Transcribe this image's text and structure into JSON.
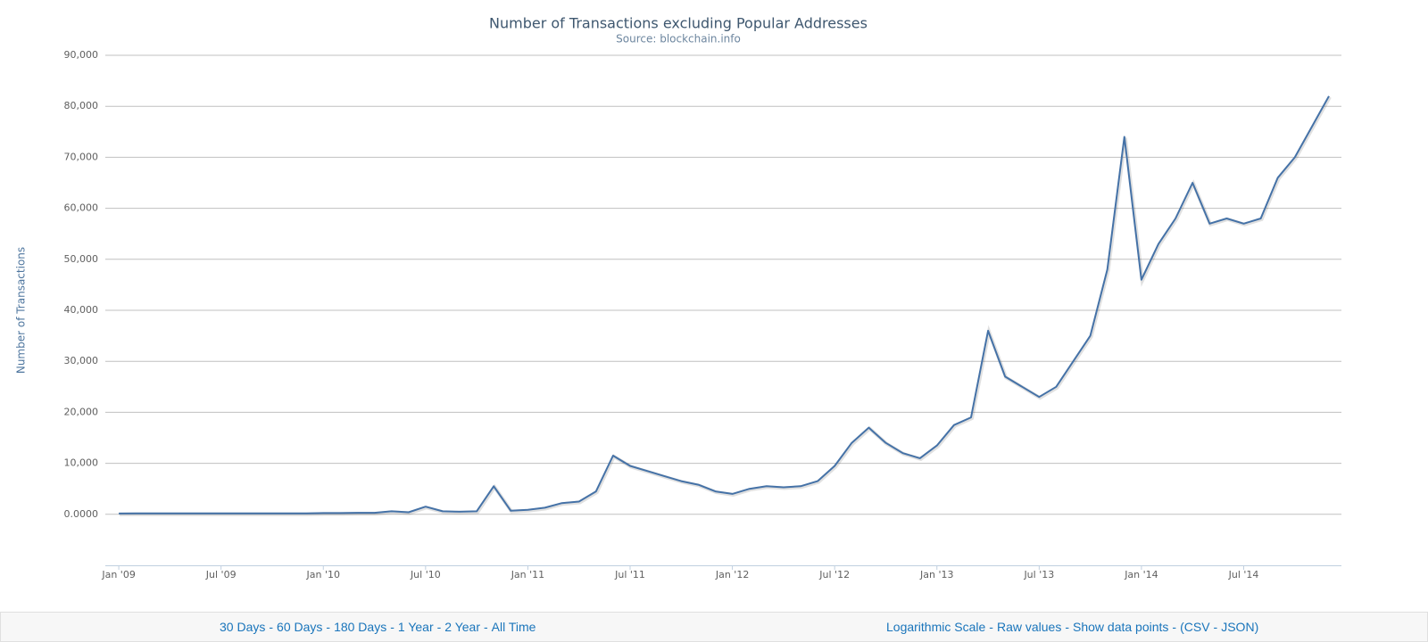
{
  "chart_data": {
    "type": "line",
    "title": "Number of Transactions excluding Popular Addresses",
    "subtitle": "Source: blockchain.info",
    "y_label": "Number of Transactions",
    "x": [
      "2009-01",
      "2009-02",
      "2009-03",
      "2009-04",
      "2009-05",
      "2009-06",
      "2009-07",
      "2009-08",
      "2009-09",
      "2009-10",
      "2009-11",
      "2009-12",
      "2010-01",
      "2010-02",
      "2010-03",
      "2010-04",
      "2010-05",
      "2010-06",
      "2010-07",
      "2010-08",
      "2010-09",
      "2010-10",
      "2010-11",
      "2010-12",
      "2011-01",
      "2011-02",
      "2011-03",
      "2011-04",
      "2011-05",
      "2011-06",
      "2011-07",
      "2011-08",
      "2011-09",
      "2011-10",
      "2011-11",
      "2011-12",
      "2012-01",
      "2012-02",
      "2012-03",
      "2012-04",
      "2012-05",
      "2012-06",
      "2012-07",
      "2012-08",
      "2012-09",
      "2012-10",
      "2012-11",
      "2012-12",
      "2013-01",
      "2013-02",
      "2013-03",
      "2013-04",
      "2013-05",
      "2013-06",
      "2013-07",
      "2013-08",
      "2013-09",
      "2013-10",
      "2013-11",
      "2013-12",
      "2014-01",
      "2014-02",
      "2014-03",
      "2014-04",
      "2014-05",
      "2014-06",
      "2014-07",
      "2014-08",
      "2014-09",
      "2014-10",
      "2014-11",
      "2014-12"
    ],
    "series": [
      {
        "name": "Number of Transactions",
        "color": "#4572a7",
        "values": [
          150,
          200,
          200,
          200,
          200,
          200,
          200,
          200,
          200,
          200,
          200,
          200,
          250,
          250,
          300,
          300,
          600,
          400,
          1500,
          600,
          500,
          600,
          5500,
          700,
          900,
          1300,
          2200,
          2500,
          4500,
          11500,
          9500,
          8500,
          7500,
          6500,
          5800,
          4500,
          4000,
          5000,
          5500,
          5300,
          5500,
          6500,
          9500,
          14000,
          17000,
          14000,
          12000,
          11000,
          13500,
          17500,
          19000,
          36000,
          27000,
          25000,
          23000,
          25000,
          30000,
          35000,
          48000,
          74000,
          46000,
          53000,
          58000,
          65000,
          57000,
          58000,
          57000,
          58000,
          66000,
          70000,
          76000,
          82000
        ]
      }
    ],
    "xlim": [
      "2008-12",
      "2014-12"
    ],
    "xticks": [
      {
        "value": "2009-01",
        "label": "Jan '09"
      },
      {
        "value": "2009-07",
        "label": "Jul '09"
      },
      {
        "value": "2010-01",
        "label": "Jan '10"
      },
      {
        "value": "2010-07",
        "label": "Jul '10"
      },
      {
        "value": "2011-01",
        "label": "Jan '11"
      },
      {
        "value": "2011-07",
        "label": "Jul '11"
      },
      {
        "value": "2012-01",
        "label": "Jan '12"
      },
      {
        "value": "2012-07",
        "label": "Jul '12"
      },
      {
        "value": "2013-01",
        "label": "Jan '13"
      },
      {
        "value": "2013-07",
        "label": "Jul '13"
      },
      {
        "value": "2014-01",
        "label": "Jan '14"
      },
      {
        "value": "2014-07",
        "label": "Jul '14"
      }
    ],
    "ylim": [
      -10000,
      90000
    ],
    "yticks": [
      {
        "value": 0,
        "label": "0.0000"
      },
      {
        "value": 10000,
        "label": "10,000"
      },
      {
        "value": 20000,
        "label": "20,000"
      },
      {
        "value": 30000,
        "label": "30,000"
      },
      {
        "value": 40000,
        "label": "40,000"
      },
      {
        "value": 50000,
        "label": "50,000"
      },
      {
        "value": 60000,
        "label": "60,000"
      },
      {
        "value": 70000,
        "label": "70,000"
      },
      {
        "value": 80000,
        "label": "80,000"
      },
      {
        "value": 90000,
        "label": "90,000"
      }
    ],
    "grid": true
  },
  "footer": {
    "separator": "-",
    "ranges": [
      "30 Days",
      "60 Days",
      "180 Days",
      "1 Year",
      "2 Year",
      "All Time"
    ],
    "options": [
      "Logarithmic Scale",
      "Raw values",
      "Show data points"
    ],
    "export_open": "(",
    "exports": [
      "CSV",
      "JSON"
    ],
    "export_close": ")"
  }
}
